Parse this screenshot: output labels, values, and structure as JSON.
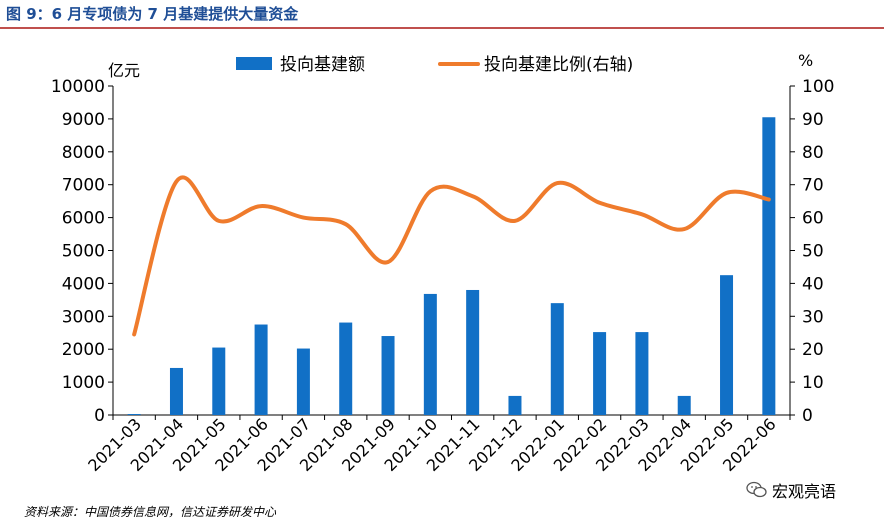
{
  "figure_title": "图 9：6 月专项债为 7 月基建提供大量资金",
  "source_text": "资料来源：中国债券信息网，信达证券研发中心",
  "watermark_text": "宏观亮语",
  "colors": {
    "bar": "#1170c6",
    "line": "#ef7b2c",
    "title": "#1f4e96",
    "rule": "#c0504d"
  },
  "chart_data": {
    "type": "bar",
    "categories": [
      "2021-03",
      "2021-04",
      "2021-05",
      "2021-06",
      "2021-07",
      "2021-08",
      "2021-09",
      "2021-10",
      "2021-11",
      "2021-12",
      "2022-01",
      "2022-02",
      "2022-03",
      "2022-04",
      "2022-05",
      "2022-06"
    ],
    "series": [
      {
        "name": "投向基建额",
        "type": "bar",
        "axis": "left",
        "values": [
          30,
          1430,
          2050,
          2750,
          2020,
          2810,
          2400,
          3680,
          3800,
          580,
          3400,
          2520,
          2520,
          580,
          4250,
          9050
        ]
      },
      {
        "name": "投向基建比例(右轴)",
        "type": "line",
        "axis": "right",
        "values": [
          24.5,
          71,
          59,
          63.5,
          60,
          58,
          46.5,
          68,
          66.5,
          59,
          70.5,
          64.5,
          61,
          56.5,
          67.5,
          65.5
        ]
      }
    ],
    "ylabel_left": "亿元",
    "ylabel_right": "%",
    "ylim_left": [
      0,
      10000
    ],
    "ylim_right": [
      0,
      100
    ],
    "yticks_left": [
      "0",
      "1000",
      "2000",
      "3000",
      "4000",
      "5000",
      "6000",
      "7000",
      "8000",
      "9000",
      "10000"
    ],
    "yticks_right": [
      "0",
      "10",
      "20",
      "30",
      "40",
      "50",
      "60",
      "70",
      "80",
      "90",
      "100"
    ],
    "legend_position": "top-center",
    "grid": false
  }
}
